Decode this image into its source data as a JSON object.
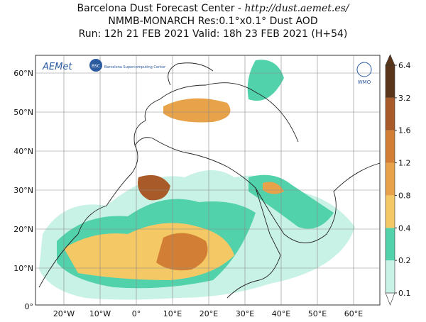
{
  "header": {
    "title": "Barcelona Dust Forecast Center - ",
    "url": "http://dust.aemet.es/",
    "model": "NMMB-MONARCH   Res:0.1°x0.1°   Dust AOD",
    "run": "Run: 12h 21 FEB 2021   Valid: 18h 23 FEB 2021 (H+54)"
  },
  "map": {
    "lat_labels": [
      "60°N",
      "50°N",
      "40°N",
      "30°N",
      "20°N",
      "10°N",
      "0°"
    ],
    "lon_labels": [
      "20°W",
      "10°W",
      "0°",
      "10°E",
      "20°E",
      "30°E",
      "40°E",
      "50°E",
      "60°E"
    ]
  },
  "logos": {
    "aemet": "AEMet",
    "bsc": "BSC",
    "bsc_text": "Barcelona Supercomputing Center",
    "wmo": "WMO"
  },
  "colorbar": {
    "levels": [
      0.1,
      0.2,
      0.4,
      0.8,
      1.2,
      1.6,
      3.2,
      6.4
    ],
    "colors": [
      "#c9f2e6",
      "#52d2aa",
      "#f4c865",
      "#e7a24a",
      "#d27f35",
      "#a85b28",
      "#5b3519"
    ]
  }
}
